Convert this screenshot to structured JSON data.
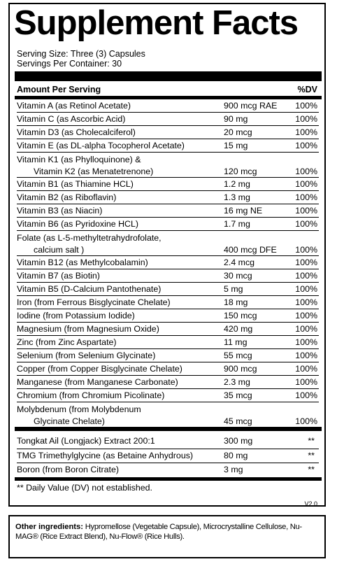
{
  "title": "Supplement Facts",
  "serving_size": "Serving Size: Three (3) Capsules",
  "servings_per_container": "Servings Per Container: 30",
  "header": {
    "amount_label": "Amount Per Serving",
    "dv_label": "%DV"
  },
  "nutrients": [
    {
      "name": "Vitamin A (as Retinol Acetate)",
      "amount": "900 mcg RAE",
      "dv": "100%"
    },
    {
      "name": "Vitamin C (as Ascorbic Acid)",
      "amount": "90 mg",
      "dv": "100%"
    },
    {
      "name": "Vitamin D3 (as Cholecalciferol)",
      "amount": "20 mcg",
      "dv": "100%"
    },
    {
      "name": "Vitamin E (as DL-alpha Tocopherol Acetate)",
      "amount": "15 mg",
      "dv": "100%"
    },
    {
      "name": "Vitamin K1 (as Phylloquinone) &",
      "name2": "Vitamin K2 (as Menatetrenone)",
      "amount": "120 mcg",
      "dv": "100%"
    },
    {
      "name": "Vitamin B1 (as Thiamine HCL)",
      "amount": "1.2 mg",
      "dv": "100%"
    },
    {
      "name": "Vitamin B2 (as Riboflavin)",
      "amount": "1.3 mg",
      "dv": "100%"
    },
    {
      "name": "Vitamin B3 (as Niacin)",
      "amount": "16 mg NE",
      "dv": "100%"
    },
    {
      "name": "Vitamin B6 (as Pyridoxine HCL)",
      "amount": "1.7 mg",
      "dv": "100%"
    },
    {
      "name": "Folate (as L-5-methyltetrahydrofolate,",
      "name2": "calcium salt )",
      "amount": "400 mcg DFE",
      "dv": "100%"
    },
    {
      "name": "Vitamin B12 (as Methylcobalamin)",
      "amount": "2.4 mcg",
      "dv": "100%"
    },
    {
      "name": "Vitamin B7 (as Biotin)",
      "amount": "30 mcg",
      "dv": "100%"
    },
    {
      "name": "Vitamin B5 (D-Calcium Pantothenate)",
      "amount": "5 mg",
      "dv": "100%"
    },
    {
      "name": "Iron (from Ferrous Bisglycinate Chelate)",
      "amount": "18 mg",
      "dv": "100%"
    },
    {
      "name": "Iodine (from Potassium Iodide)",
      "amount": "150 mcg",
      "dv": "100%"
    },
    {
      "name": "Magnesium (from Magnesium Oxide)",
      "amount": "420 mg",
      "dv": "100%"
    },
    {
      "name": "Zinc (from Zinc Aspartate)",
      "amount": "11 mg",
      "dv": "100%"
    },
    {
      "name": "Selenium (from Selenium Glycinate)",
      "amount": "55 mcg",
      "dv": "100%"
    },
    {
      "name": "Copper (from Copper Bisglycinate Chelate)",
      "amount": "900 mcg",
      "dv": "100%"
    },
    {
      "name": "Manganese (from Manganese Carbonate)",
      "amount": "2.3 mg",
      "dv": "100%"
    },
    {
      "name": "Chromium (from Chromium Picolinate)",
      "amount": "35 mcg",
      "dv": "100%"
    },
    {
      "name": "Molybdenum (from Molybdenum",
      "name2": "Glycinate Chelate)",
      "amount": "45 mcg",
      "dv": "100%"
    }
  ],
  "extras": [
    {
      "name": "Tongkat Ail (Longjack) Extract 200:1",
      "amount": "300 mg",
      "dv": "**"
    },
    {
      "name": "TMG Trimethylglycine (as Betaine Anhydrous)",
      "amount": "80 mg",
      "dv": "**"
    },
    {
      "name": "Boron (from Boron Citrate)",
      "amount": "3 mg",
      "dv": "**"
    }
  ],
  "footnote": "** Daily Value (DV) not established.",
  "version": "V2.0",
  "other_ingredients": {
    "label": "Other ingredients:",
    "text": "Hypromellose (Vegetable Capsule), Microcrystalline Cellulose, Nu-MAG® (Rice Extract Blend), Nu-Flow® (Rice Hulls)."
  }
}
